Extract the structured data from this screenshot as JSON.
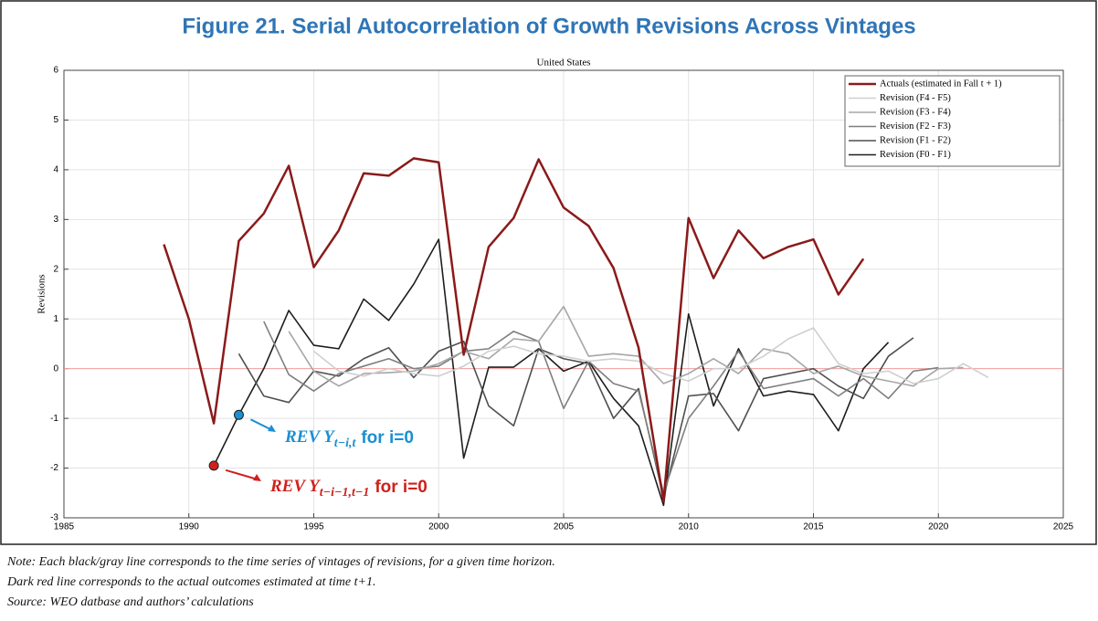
{
  "figure_title": "Figure 21. Serial Autocorrelation of Growth Revisions Across Vintages",
  "chart_data": {
    "type": "line",
    "title": "United States",
    "y_label": "Revisions",
    "x": [
      1989,
      1990,
      1991,
      1992,
      1993,
      1994,
      1995,
      1996,
      1997,
      1998,
      1999,
      2000,
      2001,
      2002,
      2003,
      2004,
      2005,
      2006,
      2007,
      2008,
      2009,
      2010,
      2011,
      2012,
      2013,
      2014,
      2015,
      2016,
      2017,
      2018,
      2019,
      2020,
      2021,
      2022
    ],
    "series": [
      {
        "name": "Actuals (estimated in Fall t + 1)",
        "color": "#8b1a1a",
        "values": [
          2.5,
          1.0,
          -1.1,
          2.57,
          3.12,
          4.08,
          2.04,
          2.78,
          3.93,
          3.88,
          4.23,
          4.15,
          0.28,
          2.45,
          3.03,
          4.21,
          3.24,
          2.87,
          2.02,
          0.42,
          -2.67,
          3.03,
          1.82,
          2.78,
          2.22,
          2.45,
          2.6,
          1.49,
          2.21,
          null,
          null,
          null,
          null,
          null
        ]
      },
      {
        "name": "Revision (F4 - F5)",
        "color": "#cfcfcf",
        "values": [
          null,
          null,
          null,
          null,
          null,
          null,
          0.35,
          -0.05,
          -0.15,
          0.0,
          -0.1,
          -0.15,
          0.05,
          0.35,
          0.45,
          0.3,
          0.25,
          0.15,
          0.2,
          0.15,
          -0.1,
          -0.25,
          0.0,
          0.0,
          0.25,
          0.6,
          0.82,
          0.1,
          -0.1,
          -0.05,
          -0.3,
          -0.2,
          0.1,
          -0.18
        ]
      },
      {
        "name": "Revision (F3 - F4)",
        "color": "#a6a6a6",
        "values": [
          null,
          null,
          null,
          null,
          null,
          0.75,
          -0.05,
          -0.35,
          -0.1,
          -0.08,
          -0.05,
          0.1,
          0.35,
          0.2,
          0.6,
          0.55,
          1.25,
          0.25,
          0.3,
          0.25,
          -0.3,
          -0.1,
          0.2,
          -0.1,
          0.4,
          0.3,
          -0.1,
          0.05,
          -0.15,
          -0.25,
          -0.35,
          0.0,
          0.02,
          null
        ]
      },
      {
        "name": "Revision (F2 - F3)",
        "color": "#7f7f7f",
        "values": [
          null,
          null,
          null,
          null,
          0.95,
          -0.12,
          -0.45,
          -0.1,
          0.05,
          0.2,
          0.0,
          0.05,
          0.35,
          0.4,
          0.75,
          0.55,
          -0.8,
          0.15,
          -0.3,
          -0.45,
          -2.5,
          -1.0,
          -0.35,
          0.35,
          -0.4,
          -0.3,
          -0.2,
          -0.55,
          -0.2,
          -0.6,
          -0.05,
          0.02,
          null,
          null
        ]
      },
      {
        "name": "Revision (F1 - F2)",
        "color": "#4f4f4f",
        "values": [
          null,
          null,
          null,
          0.3,
          -0.55,
          -0.68,
          -0.05,
          -0.15,
          0.2,
          0.42,
          -0.18,
          0.35,
          0.55,
          -0.75,
          -1.15,
          0.4,
          0.2,
          0.1,
          -1.0,
          -0.4,
          -2.6,
          -0.55,
          -0.5,
          -1.25,
          -0.2,
          -0.1,
          0.0,
          -0.35,
          -0.6,
          0.25,
          0.62,
          null,
          null,
          null
        ]
      },
      {
        "name": "Revision (F0 - F1)",
        "color": "#1e1e1e",
        "values": [
          null,
          null,
          -1.95,
          -0.93,
          0.0,
          1.17,
          0.47,
          0.4,
          1.4,
          0.97,
          1.7,
          2.6,
          -1.8,
          0.03,
          0.03,
          0.4,
          -0.05,
          0.15,
          -0.6,
          -1.15,
          -2.75,
          1.1,
          -0.75,
          0.4,
          -0.55,
          -0.45,
          -0.52,
          -1.25,
          0.0,
          0.53,
          null,
          null,
          null,
          null
        ]
      }
    ],
    "xlim": [
      1985,
      2025
    ],
    "xticks": [
      1985,
      1990,
      1995,
      2000,
      2005,
      2010,
      2015,
      2020,
      2025
    ],
    "ylim": [
      -3,
      6
    ],
    "yticks": [
      -3,
      -2,
      -1,
      0,
      1,
      2,
      3,
      4,
      5,
      6
    ],
    "grid": true,
    "reference_line": 0,
    "reference_color": "#f4a0a0",
    "legend": "upper right",
    "annotations": [
      {
        "text": "REV Y",
        "subscript": "t−i,t",
        "suffix": "for i=0",
        "color": "#1b8fd0"
      },
      {
        "text": "REV Y",
        "subscript": "t−i−1,t−1",
        "suffix": "for i=0",
        "color": "#d0201c"
      }
    ]
  },
  "notes": [
    "Note: Each black/gray line corresponds to the time series of vintages of revisions, for a given time horizon.",
    "Dark red line corresponds to the actual outcomes estimated at time t+1.",
    "Source: WEO datbase and authors’ calculations"
  ]
}
